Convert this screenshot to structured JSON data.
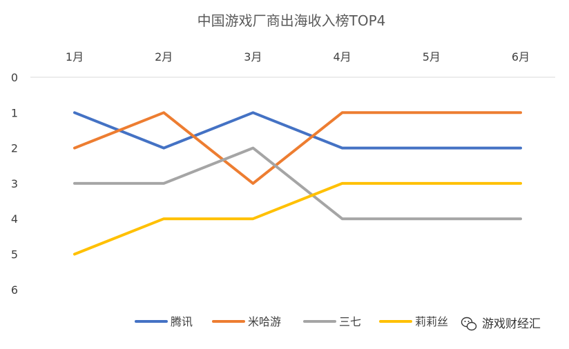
{
  "chart_data": {
    "type": "line",
    "title": "中国游戏厂商出海收入榜TOP4",
    "xlabel": "",
    "ylabel": "",
    "x": [
      "1月",
      "2月",
      "3月",
      "4月",
      "5月",
      "6月"
    ],
    "y_ticks": [
      "0",
      "1",
      "2",
      "3",
      "4",
      "5",
      "6"
    ],
    "ylim": [
      0,
      6
    ],
    "y_inverted": true,
    "x_axis_position": "top",
    "grid": false,
    "legend_position": "bottom",
    "series": [
      {
        "name": "腾讯",
        "color": "#4472C4",
        "values": [
          1,
          2,
          1,
          2,
          2,
          2
        ]
      },
      {
        "name": "米哈游",
        "color": "#ED7D31",
        "values": [
          2,
          1,
          3,
          1,
          1,
          1
        ]
      },
      {
        "name": "三七",
        "color": "#A5A5A5",
        "values": [
          3,
          3,
          2,
          4,
          4,
          4
        ]
      },
      {
        "name": "莉莉丝",
        "color": "#FFC000",
        "values": [
          5,
          4,
          4,
          3,
          3,
          3
        ]
      }
    ]
  },
  "watermark": {
    "text": "游戏财经汇",
    "icon": "wechat-icon"
  }
}
